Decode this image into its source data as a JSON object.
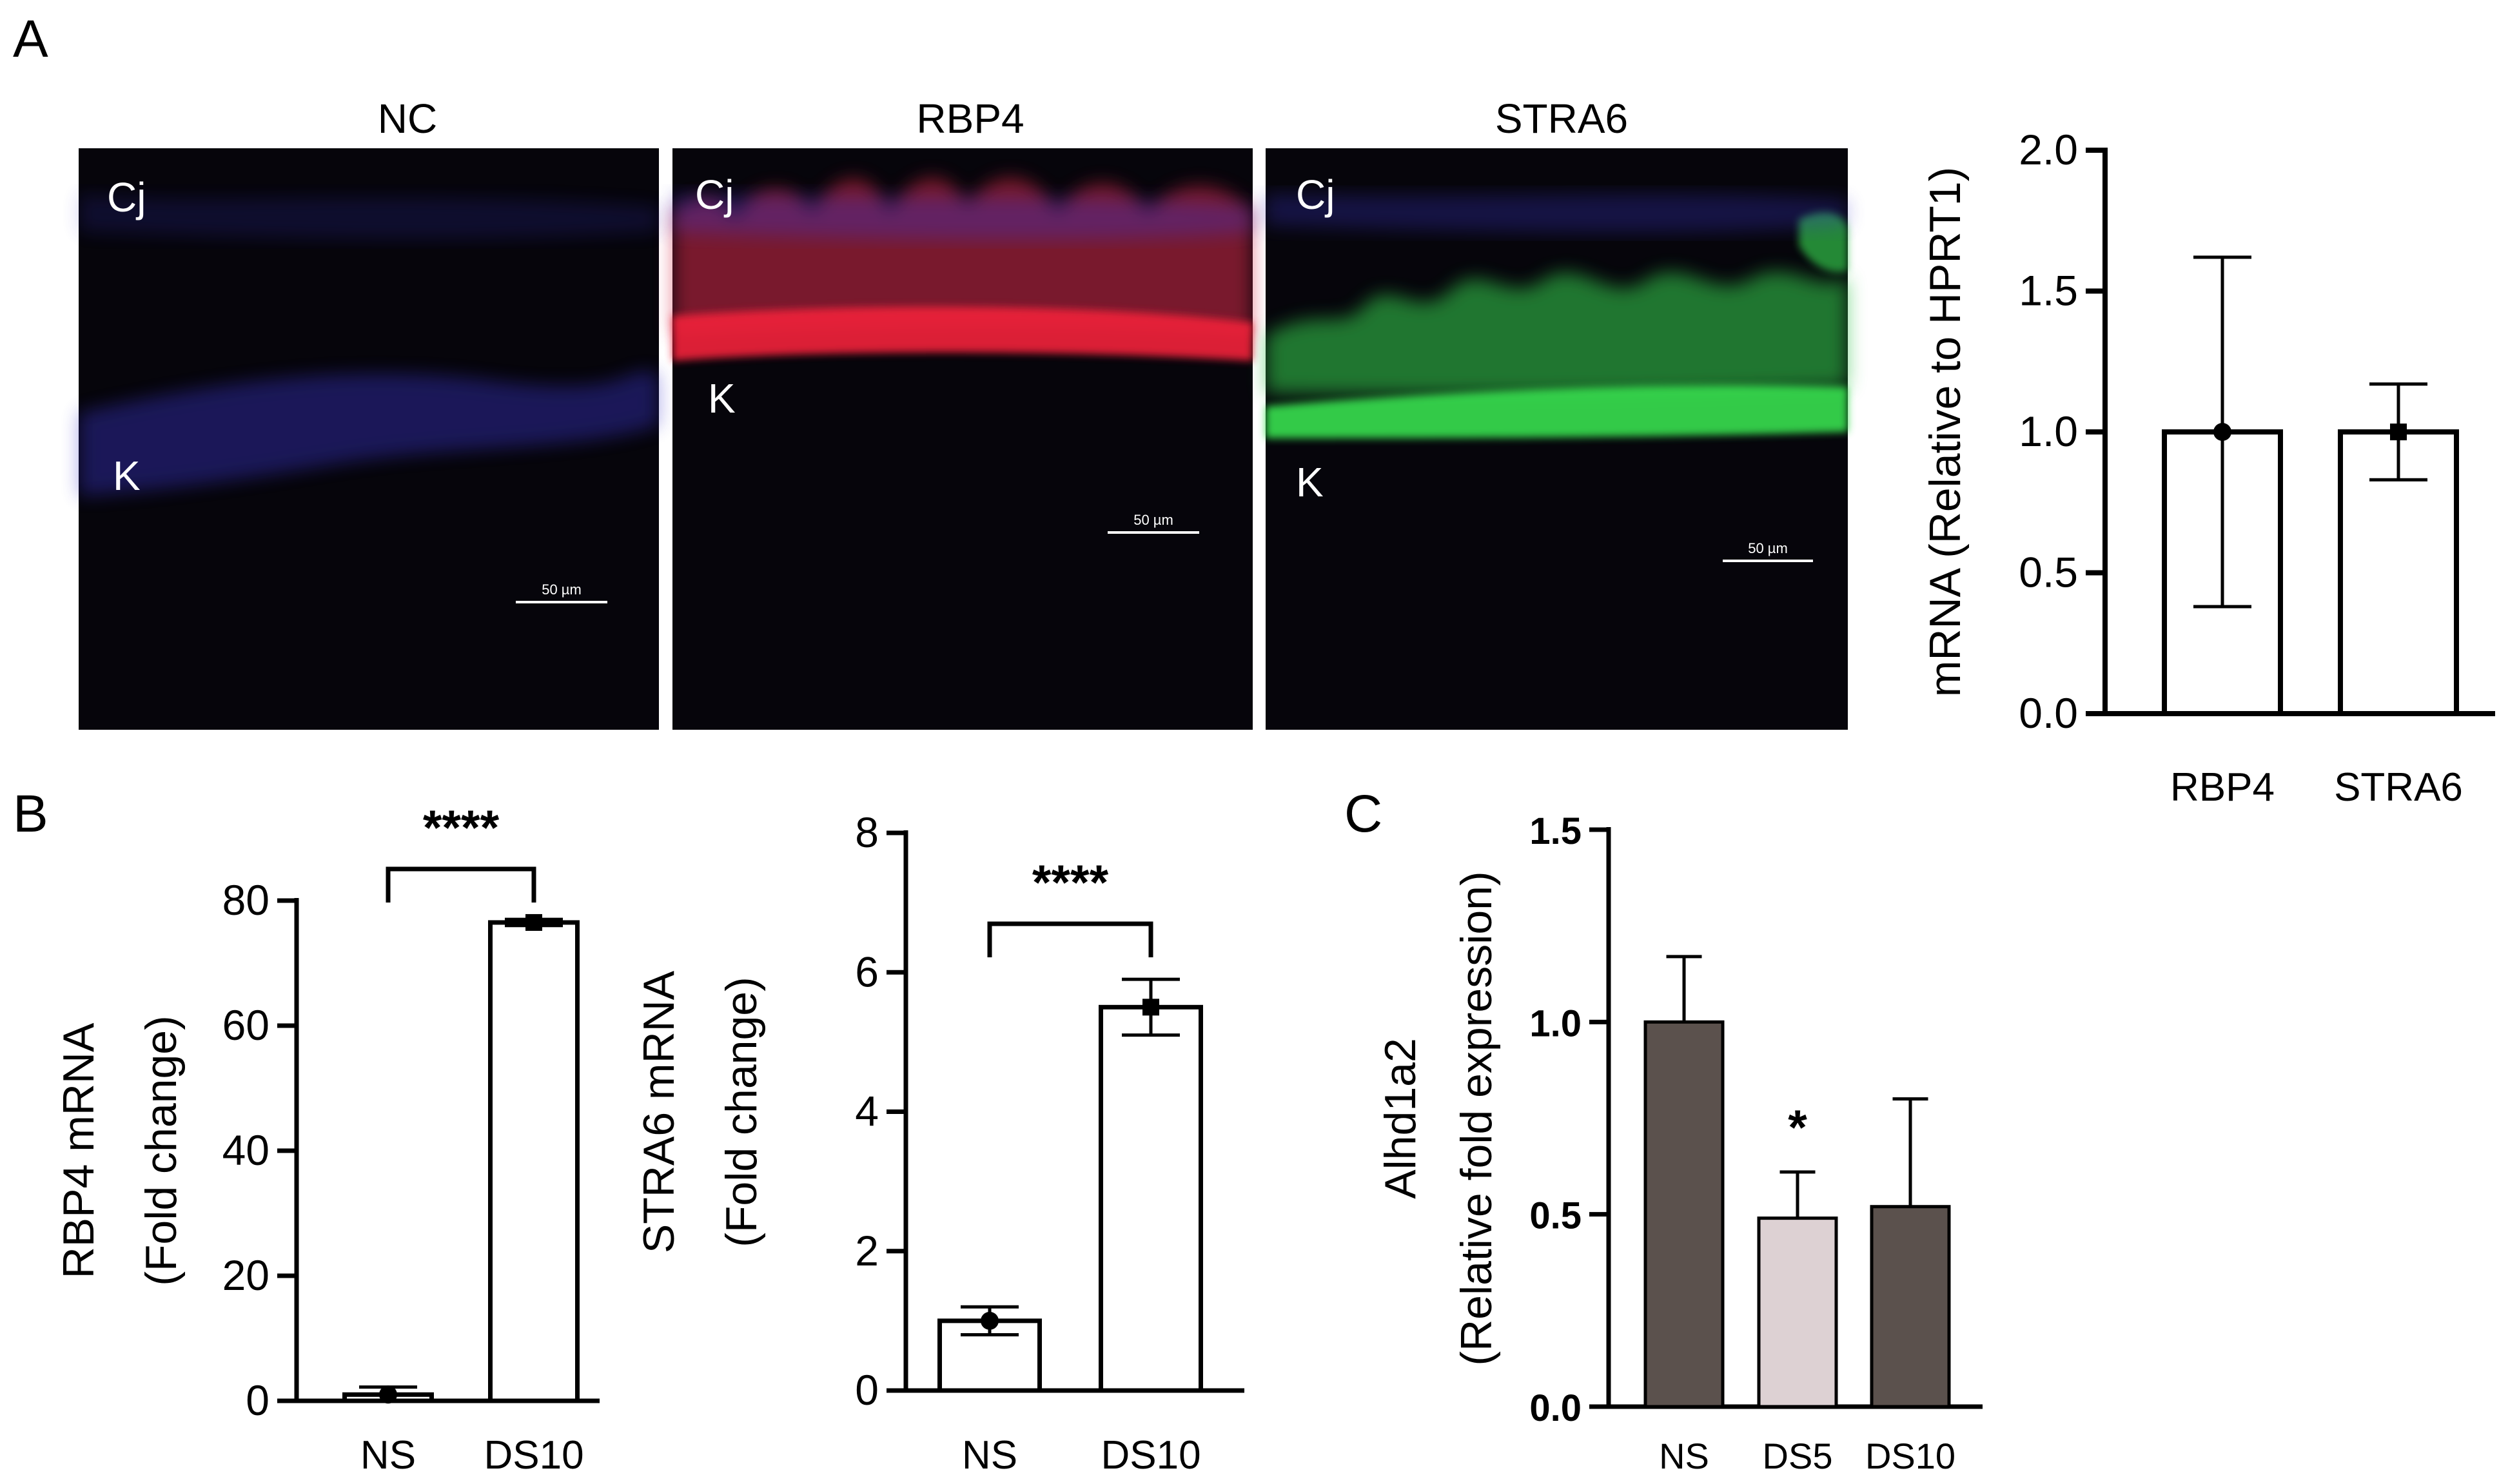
{
  "panel_letters": {
    "a": "A",
    "b": "B",
    "c": "C"
  },
  "micrographs": [
    {
      "title": "NC",
      "labels": [
        "Cj",
        "K"
      ],
      "scale": "50 µm",
      "stain": "blue"
    },
    {
      "title": "RBP4",
      "labels": [
        "Cj",
        "K"
      ],
      "scale": "50 µm",
      "stain": "red"
    },
    {
      "title": "STRA6",
      "labels": [
        "Cj",
        "K"
      ],
      "scale": "50 µm",
      "stain": "green"
    }
  ],
  "colors": {
    "nuclei": "#3a35c8",
    "rbp4": "#e8203a",
    "stra6": "#2fd24a",
    "bar_dark": "#5b514d",
    "bar_light": "#ddd1d3"
  },
  "chart_data": [
    {
      "id": "A-right",
      "type": "bar",
      "categories": [
        "RBP4",
        "STRA6"
      ],
      "values": [
        1.0,
        1.0
      ],
      "error_upper": [
        1.62,
        1.17
      ],
      "error_lower": [
        0.38,
        0.83
      ],
      "ylabel": "mRNA (Relative to HPRT1)",
      "ylim": [
        0.0,
        2.0
      ],
      "yticks": [
        "0.0",
        "0.5",
        "1.0",
        "1.5",
        "2.0"
      ],
      "fill": [
        "#ffffff",
        "#ffffff"
      ]
    },
    {
      "id": "B-left",
      "type": "bar",
      "categories": [
        "NS",
        "DS10"
      ],
      "values": [
        1.0,
        76.5
      ],
      "error_upper": [
        2.2,
        77.0
      ],
      "error_lower": [
        0.0,
        76.0
      ],
      "ylabel": [
        "RBP4 mRNA",
        "(Fold change)"
      ],
      "ylim": [
        0,
        80
      ],
      "yticks": [
        "0",
        "20",
        "40",
        "60",
        "80"
      ],
      "significance": "****",
      "fill": [
        "#ffffff",
        "#ffffff"
      ]
    },
    {
      "id": "B-right",
      "type": "bar",
      "categories": [
        "NS",
        "DS10"
      ],
      "values": [
        1.0,
        5.5
      ],
      "error_upper": [
        1.2,
        5.9
      ],
      "error_lower": [
        0.8,
        5.1
      ],
      "ylabel": [
        "STRA6 mRNA",
        "(Fold change)"
      ],
      "ylim": [
        0,
        8
      ],
      "yticks": [
        "0",
        "2",
        "4",
        "6",
        "8"
      ],
      "significance": "****",
      "fill": [
        "#ffffff",
        "#ffffff"
      ]
    },
    {
      "id": "C",
      "type": "bar",
      "categories": [
        "NS",
        "DS5",
        "DS10"
      ],
      "values": [
        1.0,
        0.49,
        0.52
      ],
      "error_upper": [
        1.17,
        0.61,
        0.8
      ],
      "ylabel": [
        "Alhd1a2",
        "(Relative fold expression)"
      ],
      "ylim": [
        0.0,
        1.5
      ],
      "yticks": [
        "0.0",
        "0.5",
        "1.0",
        "1.5"
      ],
      "significance_marks": [
        "",
        "*",
        ""
      ],
      "fill": [
        "#5b514d",
        "#ddd1d3",
        "#5b514d"
      ]
    }
  ]
}
